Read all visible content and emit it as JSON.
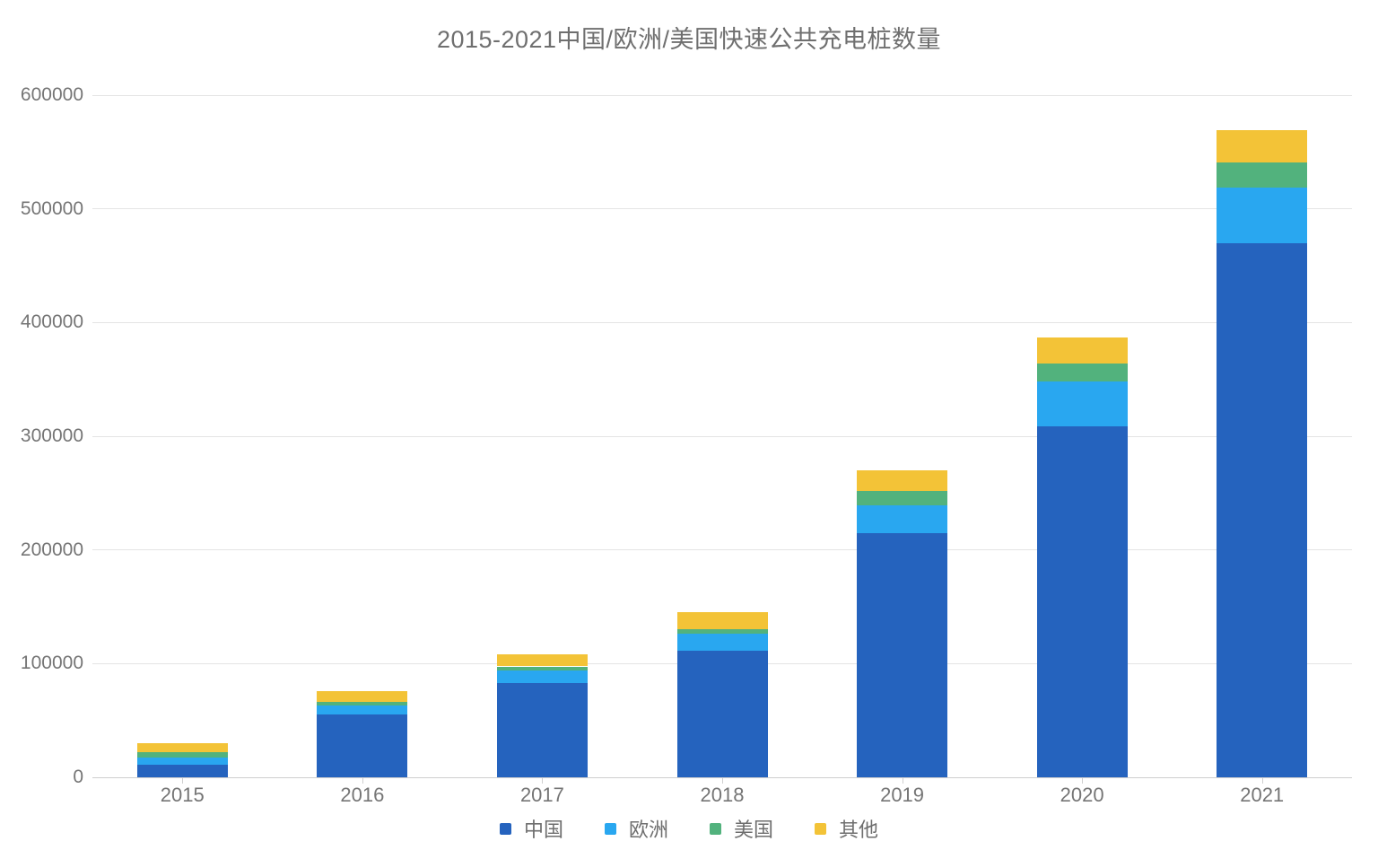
{
  "chart_data": {
    "type": "bar",
    "stacked": true,
    "title": "2015-2021中国/欧洲/美国快速公共充电桩数量",
    "title_color": "#6f6f6f",
    "categories": [
      "2015",
      "2016",
      "2017",
      "2018",
      "2019",
      "2020",
      "2021"
    ],
    "series": [
      {
        "name": "中国",
        "color": "#2563BE",
        "values": [
          11000,
          55000,
          83000,
          111000,
          215000,
          309000,
          470000
        ]
      },
      {
        "name": "欧洲",
        "color": "#29A7F0",
        "values": [
          6000,
          8000,
          11000,
          15000,
          24000,
          39000,
          49000
        ]
      },
      {
        "name": "美国",
        "color": "#52B27D",
        "values": [
          5000,
          3500,
          3500,
          4500,
          13000,
          16000,
          22000
        ]
      },
      {
        "name": "其他",
        "color": "#F3C337",
        "values": [
          8000,
          9000,
          11000,
          14500,
          18000,
          23000,
          28000
        ]
      }
    ],
    "xlabel": "",
    "ylabel": "",
    "ylim": [
      0,
      600000
    ],
    "y_ticks": [
      0,
      100000,
      200000,
      300000,
      400000,
      500000,
      600000
    ],
    "grid": true,
    "legend_position": "bottom",
    "axis_text_color": "#757575",
    "gridline_color": "#e4e4e4",
    "background_color": "#ffffff"
  }
}
